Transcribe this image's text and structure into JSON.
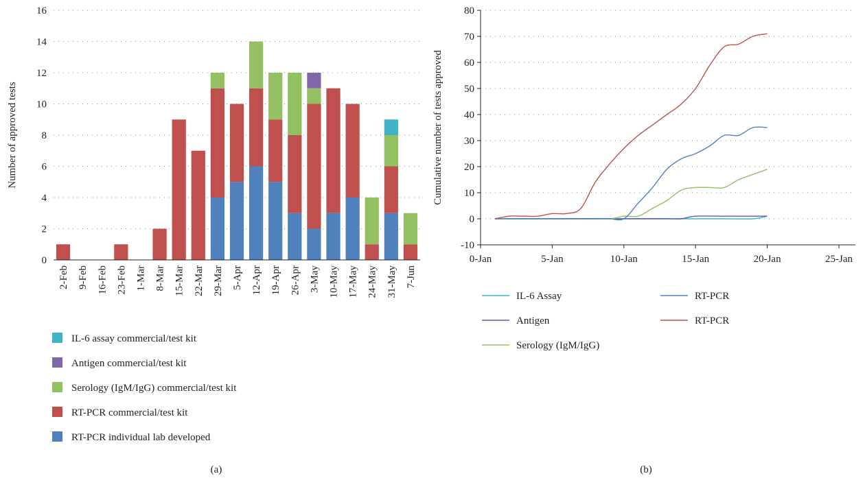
{
  "colors": {
    "il6": "#3fb3c5",
    "antigen": "#8068a8",
    "serology": "#93c060",
    "rtpcr_commercial": "#c0504d",
    "rtpcr_lab": "#4f81bd",
    "line_il6": "#3fb3c5",
    "line_antigen": "#5c5ca8",
    "line_serology": "#93c060",
    "line_rtpcr_blue": "#4f81bd",
    "line_rtpcr_red": "#c0504d",
    "grid": "#888888",
    "axis": "#222222"
  },
  "chart_data": [
    {
      "type": "bar",
      "stacked": true,
      "caption": "(a)",
      "ylabel": "Number of approved tests",
      "xlabel": "",
      "ylim": [
        0,
        16
      ],
      "yticks": [
        0,
        2,
        4,
        6,
        8,
        10,
        12,
        14,
        16
      ],
      "grid": "horizontal dotted",
      "legend_position": "bottom",
      "categories": [
        "2-Feb",
        "9-Feb",
        "16-Feb",
        "23-Feb",
        "1-Mar",
        "8-Mar",
        "15-Mar",
        "22-Mar",
        "29-Mar",
        "5-Apr",
        "12-Apr",
        "19-Apr",
        "26-Apr",
        "3-May",
        "10-May",
        "17-May",
        "24-May",
        "31-May",
        "7-Jun"
      ],
      "series": [
        {
          "name": "RT-PCR individual lab developed",
          "color_key": "rtpcr_lab",
          "values": [
            0,
            0,
            0,
            0,
            0,
            0,
            0,
            0,
            4,
            5,
            6,
            5,
            3,
            2,
            3,
            4,
            0,
            3,
            0
          ]
        },
        {
          "name": "RT-PCR commercial/test kit",
          "color_key": "rtpcr_commercial",
          "values": [
            1,
            0,
            0,
            1,
            0,
            2,
            9,
            7,
            7,
            5,
            5,
            4,
            5,
            8,
            8,
            6,
            1,
            3,
            1
          ]
        },
        {
          "name": "Serology (IgM/IgG) commercial/test kit",
          "color_key": "serology",
          "values": [
            0,
            0,
            0,
            0,
            0,
            0,
            0,
            0,
            1,
            0,
            3,
            3,
            4,
            1,
            0,
            0,
            3,
            2,
            2
          ]
        },
        {
          "name": "Antigen commercial/test kit",
          "color_key": "antigen",
          "values": [
            0,
            0,
            0,
            0,
            0,
            0,
            0,
            0,
            0,
            0,
            0,
            0,
            0,
            1,
            0,
            0,
            0,
            0,
            0
          ]
        },
        {
          "name": "IL-6 assay commercial/test kit",
          "color_key": "il6",
          "values": [
            0,
            0,
            0,
            0,
            0,
            0,
            0,
            0,
            0,
            0,
            0,
            0,
            0,
            0,
            0,
            0,
            0,
            1,
            0
          ]
        }
      ],
      "legend_order": [
        "IL-6 assay commercial/test kit",
        "Antigen commercial/test kit",
        "Serology (IgM/IgG) commercial/test kit",
        "RT-PCR commercial/test kit",
        "RT-PCR individual lab developed"
      ]
    },
    {
      "type": "line",
      "caption": "(b)",
      "ylabel": "Cumulative number of tests approved",
      "xlabel": "",
      "ylim": [
        -10,
        80
      ],
      "yticks": [
        -10,
        0,
        10,
        20,
        30,
        40,
        50,
        60,
        70,
        80
      ],
      "xlim": [
        0,
        25
      ],
      "xticks": [
        0,
        5,
        10,
        15,
        20,
        25
      ],
      "xticklabels": [
        "0-Jan",
        "5-Jan",
        "10-Jan",
        "15-Jan",
        "20-Jan",
        "25-Jan"
      ],
      "grid": "horizontal dotted",
      "legend_position": "bottom",
      "series": [
        {
          "name": "IL-6 Assay",
          "color_key": "line_il6",
          "x": [
            1,
            3,
            5,
            7,
            9,
            11,
            13,
            15,
            17,
            19,
            20
          ],
          "y": [
            0,
            0,
            0,
            0,
            0,
            0,
            0,
            0,
            0,
            0,
            1
          ]
        },
        {
          "name": "Antigen",
          "color_key": "line_antigen",
          "x": [
            1,
            3,
            5,
            7,
            9,
            11,
            13,
            14,
            15,
            17,
            19,
            20
          ],
          "y": [
            0,
            0,
            0,
            0,
            0,
            0,
            0,
            0,
            1,
            1,
            1,
            1
          ]
        },
        {
          "name": "Serology (IgM/IgG)",
          "color_key": "line_serology",
          "x": [
            1,
            3,
            5,
            7,
            9,
            10,
            11,
            12,
            13,
            14,
            15,
            16,
            17,
            18,
            19,
            20
          ],
          "y": [
            0,
            0,
            0,
            0,
            0,
            1,
            1,
            4,
            7,
            11,
            12,
            12,
            12,
            15,
            17,
            19
          ]
        },
        {
          "name": "RT-PCR",
          "color_key": "line_rtpcr_blue",
          "x": [
            1,
            3,
            5,
            7,
            8,
            9,
            10,
            11,
            12,
            13,
            14,
            15,
            16,
            17,
            18,
            19,
            20
          ],
          "y": [
            0,
            0,
            0,
            0,
            0,
            0,
            0,
            6,
            12,
            19,
            23,
            25,
            28,
            32,
            32,
            35,
            35
          ]
        },
        {
          "name": "RT-PCR",
          "color_key": "line_rtpcr_red",
          "x": [
            1,
            2,
            3,
            4,
            5,
            6,
            7,
            8,
            9,
            10,
            11,
            12,
            13,
            14,
            15,
            16,
            17,
            18,
            19,
            20
          ],
          "y": [
            0,
            1,
            1,
            1,
            2,
            2,
            4,
            14,
            21,
            27,
            32,
            36,
            40,
            44,
            50,
            59,
            66,
            67,
            70,
            71
          ]
        }
      ],
      "legend_columns": [
        [
          "IL-6 Assay",
          "Antigen",
          "Serology (IgM/IgG)"
        ],
        [
          "RT-PCR",
          "RT-PCR"
        ]
      ]
    }
  ]
}
